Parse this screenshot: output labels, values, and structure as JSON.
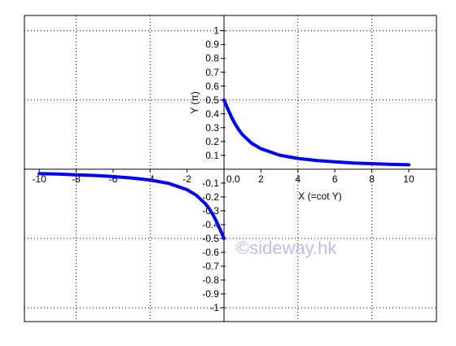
{
  "chart_data": {
    "type": "line",
    "title": "",
    "xlabel": "X (=cot  Y)",
    "ylabel": "Y (π)",
    "xlim": [
      -10.8,
      11.5
    ],
    "ylim": [
      -1.1,
      1.11
    ],
    "grid": true,
    "x_ticks": [
      -10,
      -8,
      -6,
      -4,
      -2,
      2,
      4,
      6,
      8,
      10
    ],
    "x_tick_labels": [
      "-10",
      "-8",
      "-6",
      "-4",
      "-2",
      "2",
      "4",
      "6",
      "8",
      "10"
    ],
    "origin_label": "0.0",
    "y_ticks": [
      1,
      0.9,
      0.8,
      0.7,
      0.6,
      0.5,
      0.4,
      0.3,
      0.2,
      0.1,
      -0.1,
      -0.2,
      -0.3,
      -0.4,
      -0.5,
      -0.6,
      -0.7,
      -0.8,
      -0.9,
      -1
    ],
    "y_tick_labels": [
      "1",
      "0.9",
      "0.8",
      "0.7",
      "0.6",
      "0.5",
      "0.4",
      "0.3",
      "0.2",
      "0.1",
      "-0.1",
      "-0.2",
      "-0.3",
      "-0.4",
      "-0.5",
      "-0.6",
      "-0.7",
      "-0.8",
      "-0.9",
      "-1"
    ],
    "grid_x": [
      -8,
      -4,
      4,
      8
    ],
    "grid_y": [
      0.5,
      1,
      -0.5,
      -1
    ],
    "series": [
      {
        "x": [
          0,
          0.2,
          0.4,
          0.6,
          0.8,
          1,
          1.5,
          2,
          3,
          4,
          5,
          6,
          7,
          8,
          9,
          10
        ],
        "y": [
          0.5,
          0.437,
          0.379,
          0.327,
          0.285,
          0.25,
          0.187,
          0.148,
          0.102,
          0.078,
          0.063,
          0.053,
          0.045,
          0.04,
          0.035,
          0.032
        ],
        "color": "#0000ff"
      },
      {
        "x": [
          -10,
          -9,
          -8,
          -7,
          -6,
          -5,
          -4,
          -3,
          -2,
          -1.5,
          -1,
          -0.8,
          -0.6,
          -0.4,
          -0.2,
          0
        ],
        "y": [
          -0.032,
          -0.035,
          -0.04,
          -0.045,
          -0.053,
          -0.063,
          -0.078,
          -0.102,
          -0.148,
          -0.187,
          -0.25,
          -0.285,
          -0.327,
          -0.379,
          -0.437,
          -0.5
        ],
        "color": "#0000ff"
      }
    ]
  },
  "watermark": "©sideway.hk"
}
